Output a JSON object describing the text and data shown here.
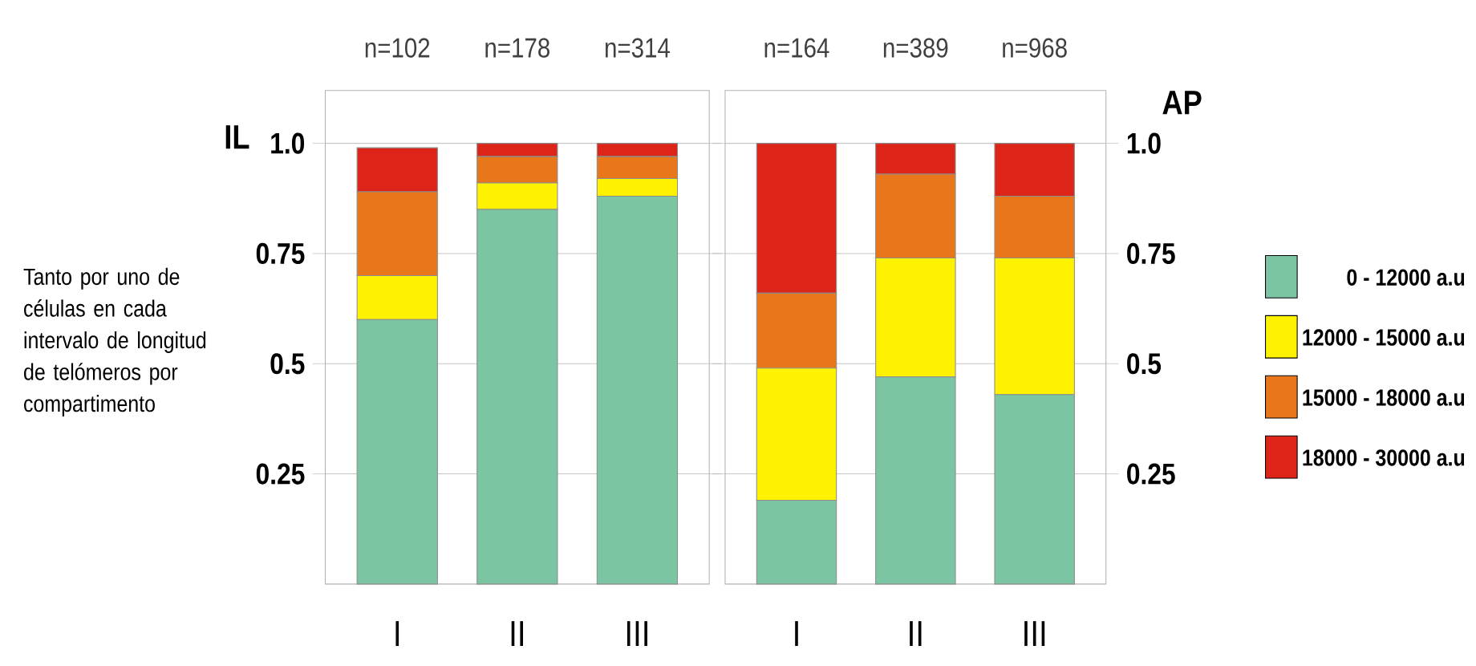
{
  "chart_data": [
    {
      "type": "bar",
      "stacked": true,
      "title": "IL",
      "ylabel": "Tanto por uno de células en cada intervalo de longitud de telómeros por compartimento",
      "categories": [
        "I",
        "II",
        "III"
      ],
      "series": [
        {
          "color": "#7cc5a3",
          "values": [
            0.6,
            0.85,
            0.88
          ]
        },
        {
          "color": "#fff200",
          "values": [
            0.1,
            0.06,
            0.04
          ]
        },
        {
          "color": "#e8761a",
          "values": [
            0.19,
            0.06,
            0.05
          ]
        },
        {
          "color": "#dc2418",
          "values": [
            0.1,
            0.03,
            0.03
          ]
        }
      ],
      "ylim": [
        0,
        1.12
      ],
      "yticks": [
        0.25,
        0.5,
        0.75,
        {
          "value": 1.0,
          "label": "1.0"
        }
      ],
      "grid": "y",
      "annotations": [
        "n=102",
        "n=178",
        "n=314"
      ]
    },
    {
      "type": "bar",
      "stacked": true,
      "title": "AP",
      "categories": [
        "I",
        "II",
        "III"
      ],
      "series": [
        {
          "name": "0 - 12000 a.u",
          "color": "#7cc5a3",
          "values": [
            0.19,
            0.47,
            0.43
          ]
        },
        {
          "name": "12000 - 15000 a.u",
          "color": "#fff200",
          "values": [
            0.3,
            0.27,
            0.31
          ]
        },
        {
          "name": "15000 - 18000 a.u",
          "color": "#e8761a",
          "values": [
            0.17,
            0.19,
            0.14
          ]
        },
        {
          "name": "18000 - 30000 a.u",
          "color": "#dc2418",
          "values": [
            0.34,
            0.07,
            0.12
          ]
        }
      ],
      "ylim": [
        0,
        1.12
      ],
      "yticks": [
        0.25,
        0.5,
        0.75,
        {
          "value": 1.0,
          "label": "1.0"
        }
      ],
      "grid": "y",
      "legend": "right",
      "annotations": [
        "n=164",
        "n=389",
        "n=968"
      ]
    }
  ]
}
